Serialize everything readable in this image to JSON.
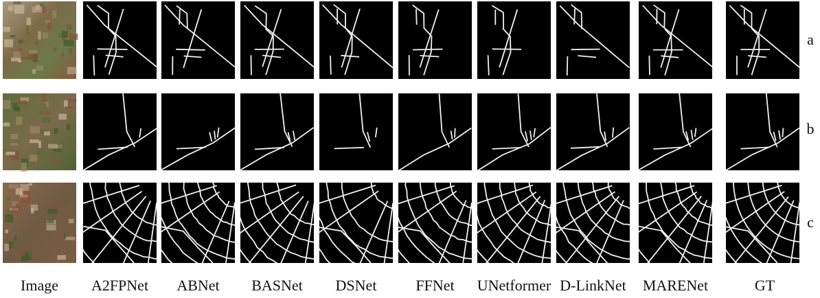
{
  "columns": [
    "Image",
    "A2FPNet",
    "ABNet",
    "BASNet",
    "DSNet",
    "FFNet",
    "UNetformer",
    "D-LinkNet",
    "MARENet",
    "GT"
  ],
  "rows": [
    "a",
    "b",
    "c"
  ]
}
